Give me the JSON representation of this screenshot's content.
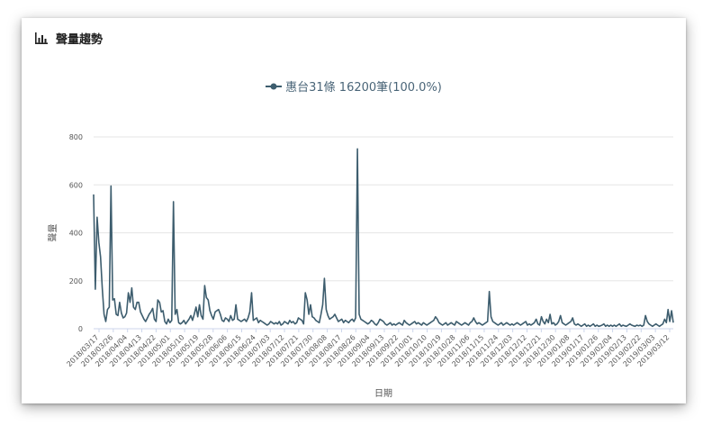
{
  "panel": {
    "title": "聲量趨勢",
    "icon": "bar-chart-icon"
  },
  "legend": {
    "label": "惠台31條 16200筆(100.0%)",
    "color": "#3d5d6e"
  },
  "chart_data": {
    "type": "line",
    "xlabel": "日期",
    "ylabel": "聲量",
    "ylim": [
      0,
      800
    ],
    "yticks": [
      0,
      200,
      400,
      600,
      800
    ],
    "grid": true,
    "legend_position": "top-center",
    "x_tick_labels": [
      "2018/03/17",
      "2018/03/26",
      "2018/04/04",
      "2018/04/13",
      "2018/04/22",
      "2018/05/01",
      "2018/05/10",
      "2018/05/19",
      "2018/05/28",
      "2018/06/06",
      "2018/06/15",
      "2018/06/24",
      "2018/07/03",
      "2018/07/12",
      "2018/07/21",
      "2018/07/30",
      "2018/08/08",
      "2018/08/17",
      "2018/08/26",
      "2018/09/04",
      "2018/09/13",
      "2018/09/22",
      "2018/10/01",
      "2018/10/10",
      "2018/10/19",
      "2018/10/28",
      "2018/11/06",
      "2018/11/15",
      "2018/11/24",
      "2018/12/03",
      "2018/12/12",
      "2018/12/21",
      "2018/12/30",
      "2019/01/08",
      "2019/01/17",
      "2019/01/26",
      "2019/02/04",
      "2019/02/13",
      "2019/02/22",
      "2019/03/03",
      "2019/03/12"
    ],
    "series": [
      {
        "name": "惠台31條 16200筆(100.0%)",
        "color": "#3d5d6e",
        "values": [
          560,
          165,
          465,
          360,
          300,
          170,
          60,
          30,
          80,
          90,
          595,
          120,
          125,
          60,
          55,
          110,
          65,
          45,
          50,
          65,
          150,
          110,
          170,
          90,
          80,
          110,
          110,
          70,
          55,
          40,
          30,
          45,
          60,
          70,
          85,
          40,
          30,
          120,
          110,
          70,
          75,
          30,
          20,
          40,
          25,
          35,
          530,
          60,
          80,
          25,
          20,
          25,
          35,
          20,
          30,
          40,
          55,
          35,
          60,
          90,
          50,
          100,
          55,
          40,
          180,
          130,
          120,
          75,
          55,
          40,
          70,
          75,
          80,
          60,
          35,
          30,
          45,
          40,
          30,
          55,
          35,
          40,
          100,
          40,
          35,
          30,
          35,
          40,
          30,
          45,
          70,
          150,
          35,
          40,
          45,
          25,
          35,
          30,
          25,
          20,
          15,
          20,
          30,
          25,
          20,
          25,
          20,
          30,
          15,
          20,
          30,
          25,
          20,
          35,
          25,
          30,
          20,
          25,
          45,
          40,
          35,
          20,
          150,
          120,
          60,
          100,
          50,
          45,
          35,
          30,
          25,
          60,
          100,
          210,
          80,
          55,
          40,
          45,
          50,
          60,
          45,
          30,
          35,
          40,
          25,
          35,
          30,
          25,
          35,
          40,
          30,
          45,
          750,
          60,
          40,
          35,
          30,
          25,
          20,
          25,
          35,
          30,
          20,
          15,
          25,
          40,
          35,
          30,
          20,
          15,
          20,
          25,
          15,
          20,
          15,
          20,
          25,
          20,
          15,
          35,
          25,
          20,
          15,
          20,
          25,
          30,
          20,
          25,
          20,
          15,
          25,
          20,
          15,
          20,
          25,
          30,
          35,
          50,
          40,
          25,
          20,
          15,
          20,
          25,
          15,
          20,
          25,
          20,
          15,
          30,
          25,
          20,
          15,
          20,
          25,
          20,
          15,
          25,
          30,
          45,
          30,
          20,
          25,
          20,
          15,
          20,
          25,
          30,
          155,
          50,
          30,
          25,
          20,
          15,
          20,
          25,
          15,
          20,
          25,
          20,
          15,
          20,
          15,
          20,
          25,
          20,
          15,
          20,
          25,
          30,
          15,
          20,
          15,
          20,
          25,
          40,
          20,
          15,
          50,
          30,
          20,
          40,
          25,
          60,
          20,
          25,
          15,
          20,
          30,
          55,
          25,
          20,
          15,
          20,
          25,
          30,
          45,
          20,
          15,
          20,
          15,
          10,
          15,
          20,
          10,
          15,
          10,
          15,
          20,
          10,
          15,
          10,
          12,
          15,
          20,
          10,
          15,
          10,
          15,
          10,
          15,
          10,
          15,
          20,
          10,
          15,
          12,
          10,
          15,
          20,
          15,
          12,
          10,
          15,
          12,
          15,
          10,
          15,
          55,
          30,
          20,
          15,
          10,
          15,
          20,
          15,
          10,
          15,
          20,
          40,
          25,
          80,
          30,
          75,
          25
        ]
      }
    ]
  }
}
